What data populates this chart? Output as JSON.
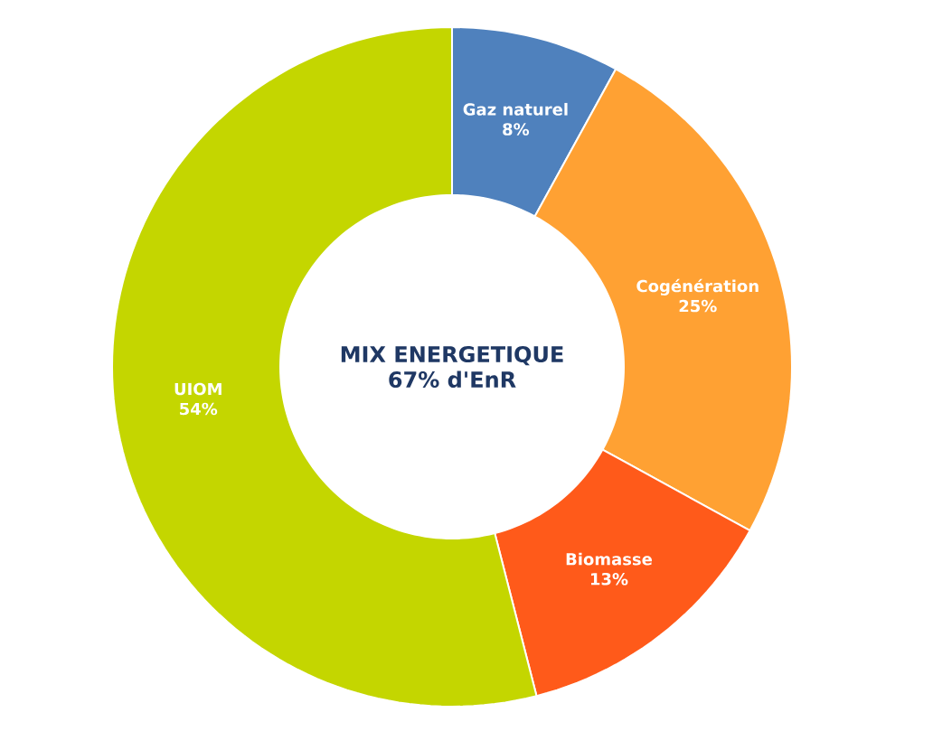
{
  "chart_data": {
    "type": "donut",
    "title": "MIX ENERGETIQUE",
    "subtitle": "67% d'EnR",
    "categories": [
      "Gaz naturel",
      "Cogénération",
      "Biomasse",
      "UIOM"
    ],
    "values": [
      8,
      25,
      13,
      54
    ],
    "value_labels": [
      "8%",
      "25%",
      "13%",
      "54%"
    ],
    "colors": [
      "#4f81bd",
      "#ffa133",
      "#ff5a1a",
      "#c4d600"
    ]
  }
}
